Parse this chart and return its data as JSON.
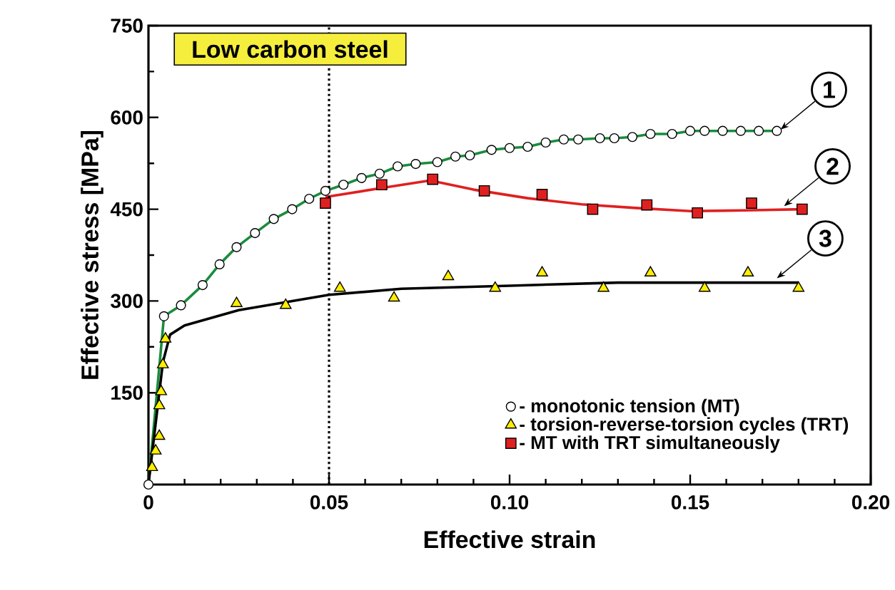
{
  "chart_data": {
    "type": "scatter",
    "title": "Low carbon steel",
    "xlabel": "Effective strain",
    "ylabel": "Effective stress [MPa]",
    "xlim": [
      0,
      0.2
    ],
    "ylim": [
      0,
      750
    ],
    "xticks": [
      0,
      0.05,
      {
        "value": 0.1,
        "label": "0.10"
      },
      0.15,
      {
        "value": 0.2,
        "label": "0.20"
      }
    ],
    "yticks": [
      150,
      300,
      450,
      600,
      750
    ],
    "legend": "bottom right",
    "series": [
      {
        "type": "line",
        "color": "#1a8c3c",
        "marker": "none",
        "line_style": "solid",
        "x": [
          0,
          0.0043,
          0.009,
          0.015,
          0.0197,
          0.0244,
          0.0295,
          0.0347,
          0.0398,
          0.0445,
          0.049,
          0.054,
          0.059,
          0.064,
          0.069,
          0.074,
          0.08,
          0.085,
          0.089,
          0.095,
          0.1,
          0.105,
          0.11,
          0.115,
          0.119,
          0.125,
          0.129,
          0.134,
          0.139,
          0.145,
          0.15,
          0.154,
          0.159,
          0.164,
          0.169,
          0.174
        ],
        "values": [
          0,
          275,
          293,
          326,
          360,
          388,
          411,
          434,
          450,
          467,
          480,
          490,
          501,
          508,
          520,
          524,
          527,
          536,
          538,
          547,
          550,
          552,
          559,
          564,
          564,
          566,
          566,
          568,
          573,
          573,
          578,
          578,
          578,
          578,
          578,
          578
        ]
      },
      {
        "type": "line",
        "color": "#e02020",
        "marker": "none",
        "line_style": "solid",
        "x": [
          0.049,
          0.065,
          0.078,
          0.09,
          0.105,
          0.12,
          0.135,
          0.15,
          0.165,
          0.181
        ],
        "values": [
          470,
          485,
          497,
          482,
          468,
          458,
          452,
          447,
          448,
          450
        ]
      },
      {
        "type": "line",
        "color": "#000000",
        "marker": "none",
        "line_style": "solid",
        "x": [
          0,
          0.002,
          0.004,
          0.006,
          0.01,
          0.025,
          0.05,
          0.07,
          0.1,
          0.13,
          0.18
        ],
        "values": [
          0,
          100,
          200,
          245,
          260,
          285,
          310,
          320,
          325,
          330,
          330
        ]
      },
      {
        "name": "- monotonic tension (MT)",
        "color": "#ffffff",
        "marker": "circle",
        "x": [
          0,
          0.0043,
          0.009,
          0.015,
          0.0197,
          0.0244,
          0.0295,
          0.0347,
          0.0398,
          0.0445,
          0.049,
          0.054,
          0.059,
          0.064,
          0.069,
          0.074,
          0.08,
          0.085,
          0.089,
          0.095,
          0.1,
          0.105,
          0.11,
          0.115,
          0.119,
          0.125,
          0.129,
          0.134,
          0.139,
          0.145,
          0.15,
          0.154,
          0.159,
          0.164,
          0.169,
          0.174
        ],
        "values": [
          0,
          275,
          293,
          326,
          360,
          388,
          411,
          434,
          450,
          467,
          480,
          490,
          501,
          508,
          520,
          524,
          527,
          536,
          538,
          547,
          550,
          552,
          559,
          564,
          564,
          566,
          566,
          568,
          573,
          573,
          578,
          578,
          578,
          578,
          578,
          578
        ]
      },
      {
        "name": "- torsion-reverse-torsion cycles (TRT)",
        "color": "#ffee00",
        "marker": "triangle",
        "x": [
          0.001,
          0.002,
          0.003,
          0.003,
          0.0035,
          0.004,
          0.0047,
          0.0244,
          0.038,
          0.053,
          0.068,
          0.083,
          0.096,
          0.109,
          0.126,
          0.139,
          0.154,
          0.166,
          0.18
        ],
        "values": [
          28,
          55,
          79,
          129,
          152,
          196,
          238,
          296,
          293,
          321,
          305,
          340,
          321,
          346,
          321,
          346,
          321,
          346,
          321
        ]
      },
      {
        "name": "- MT with TRT simultaneously",
        "color": "#e02020",
        "marker": "square",
        "x": [
          0.049,
          0.0646,
          0.0787,
          0.093,
          0.109,
          0.123,
          0.138,
          0.152,
          0.167,
          0.181
        ],
        "values": [
          460,
          490,
          499,
          480,
          474,
          450,
          457,
          444,
          460,
          450
        ]
      }
    ],
    "ref_lines": [
      {
        "axis": "x",
        "value": 0.05,
        "color": "#000000",
        "line_style": "dotted"
      }
    ],
    "annotations": [
      {
        "text": "1",
        "x": 0.175,
        "y": 580
      },
      {
        "text": "2",
        "x": 0.176,
        "y": 455
      },
      {
        "text": "3",
        "x": 0.174,
        "y": 337
      }
    ]
  }
}
